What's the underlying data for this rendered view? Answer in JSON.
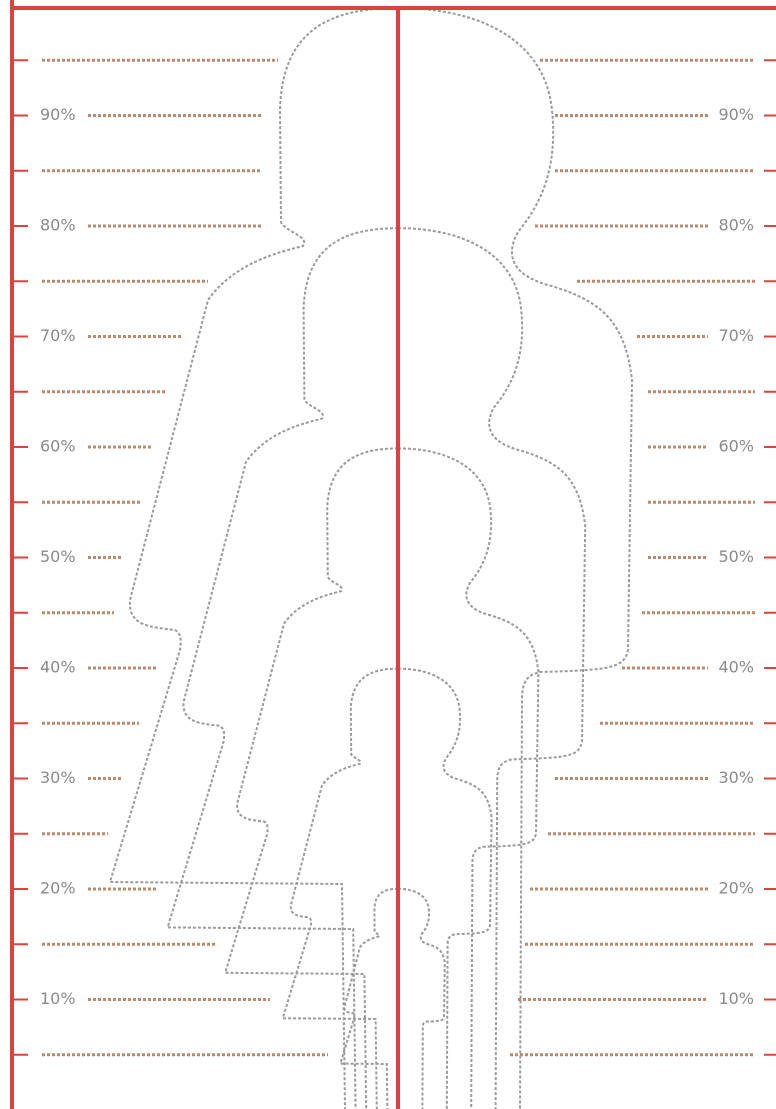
{
  "left_scale": {
    "labels": [
      "90%",
      "80%",
      "70%",
      "60%",
      "50%",
      "40%",
      "30%",
      "20%",
      "10%"
    ]
  },
  "right_scale": {
    "labels": [
      "90%",
      "80%",
      "70%",
      "60%",
      "50%",
      "40%",
      "30%",
      "20%",
      "10%"
    ]
  }
}
